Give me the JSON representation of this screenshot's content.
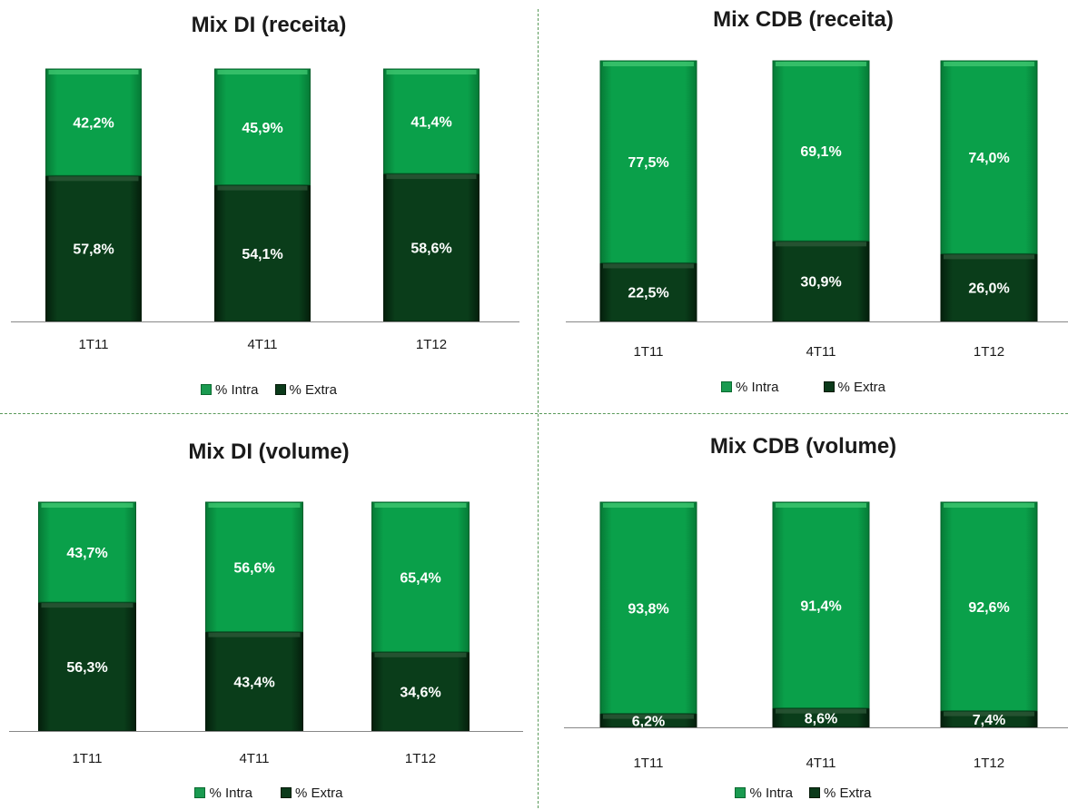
{
  "colors": {
    "intra": "#0aa04a",
    "extra": "#0a3d1a"
  },
  "chart_data": [
    {
      "type": "bar",
      "stacked": true,
      "title": "Mix DI (receita)",
      "categories": [
        "1T11",
        "4T11",
        "1T12"
      ],
      "series": [
        {
          "name": "% Extra",
          "values": [
            57.8,
            54.1,
            58.6
          ],
          "labels": [
            "57,8%",
            "54,1%",
            "58,6%"
          ]
        },
        {
          "name": "% Intra",
          "values": [
            42.2,
            45.9,
            41.4
          ],
          "labels": [
            "42,2%",
            "45,9%",
            "41,4%"
          ]
        }
      ],
      "ylim": [
        0,
        100
      ],
      "legend": "bottom",
      "legend_entries": [
        "% Intra",
        "% Extra"
      ]
    },
    {
      "type": "bar",
      "stacked": true,
      "title": "Mix CDB (receita)",
      "categories": [
        "1T11",
        "4T11",
        "1T12"
      ],
      "series": [
        {
          "name": "% Extra",
          "values": [
            22.5,
            30.9,
            26.0
          ],
          "labels": [
            "22,5%",
            "30,9%",
            "26,0%"
          ]
        },
        {
          "name": "% Intra",
          "values": [
            77.5,
            69.1,
            74.0
          ],
          "labels": [
            "77,5%",
            "69,1%",
            "74,0%"
          ]
        }
      ],
      "ylim": [
        0,
        100
      ],
      "legend": "bottom",
      "legend_entries": [
        "% Intra",
        "% Extra"
      ]
    },
    {
      "type": "bar",
      "stacked": true,
      "title": "Mix DI (volume)",
      "categories": [
        "1T11",
        "4T11",
        "1T12"
      ],
      "series": [
        {
          "name": "% Extra",
          "values": [
            56.3,
            43.4,
            34.6
          ],
          "labels": [
            "56,3%",
            "43,4%",
            "34,6%"
          ]
        },
        {
          "name": "% Intra",
          "values": [
            43.7,
            56.6,
            65.4
          ],
          "labels": [
            "43,7%",
            "56,6%",
            "65,4%"
          ]
        }
      ],
      "ylim": [
        0,
        100
      ],
      "legend": "bottom",
      "legend_entries": [
        "% Intra",
        "% Extra"
      ]
    },
    {
      "type": "bar",
      "stacked": true,
      "title": "Mix CDB (volume)",
      "categories": [
        "1T11",
        "4T11",
        "1T12"
      ],
      "series": [
        {
          "name": "% Extra",
          "values": [
            6.2,
            8.6,
            7.4
          ],
          "labels": [
            "6,2%",
            "8,6%",
            "7,4%"
          ]
        },
        {
          "name": "% Intra",
          "values": [
            93.8,
            91.4,
            92.6
          ],
          "labels": [
            "93,8%",
            "91,4%",
            "92,6%"
          ]
        }
      ],
      "ylim": [
        0,
        100
      ],
      "legend": "bottom",
      "legend_entries": [
        "% Intra",
        "% Extra"
      ]
    }
  ]
}
